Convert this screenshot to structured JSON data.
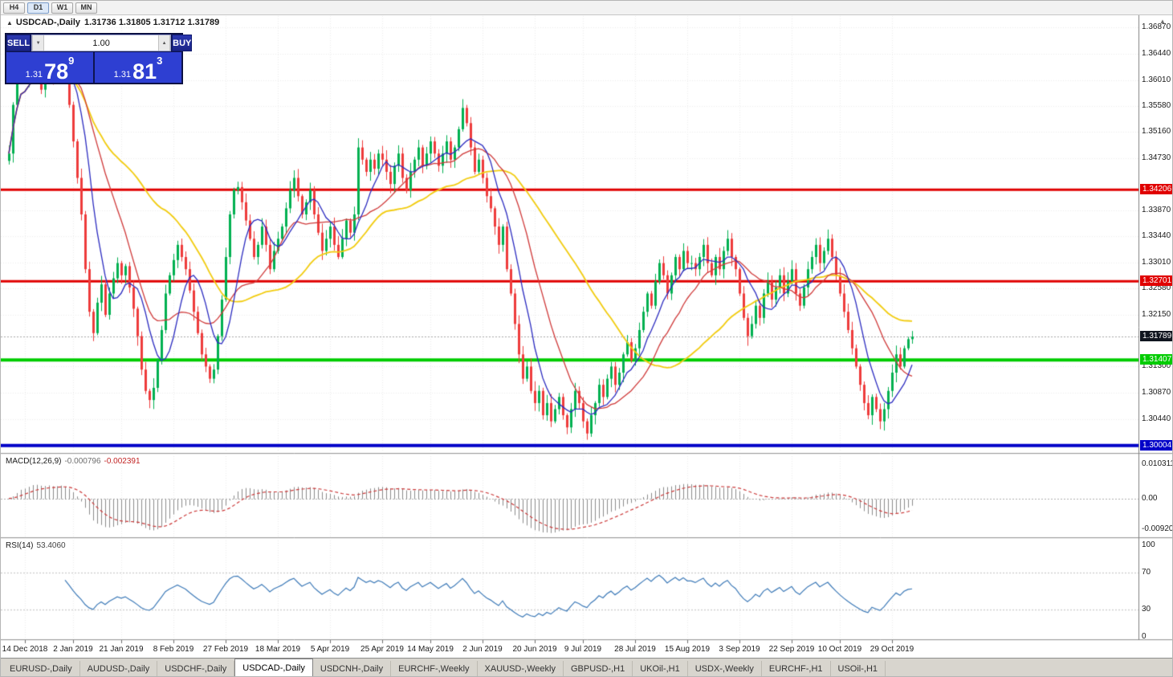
{
  "toolbar": {
    "timeframes": [
      {
        "label": "H4",
        "active": false
      },
      {
        "label": "D1",
        "active": true
      },
      {
        "label": "W1",
        "active": false
      },
      {
        "label": "MN",
        "active": false
      }
    ]
  },
  "chart": {
    "title": "USDCAD-,Daily",
    "ohlc_line": "1.31736 1.31805 1.31712 1.31789"
  },
  "trade_widget": {
    "sell_label": "SELL",
    "buy_label": "BUY",
    "volume": "1.00",
    "sell_price": {
      "small": "1.31",
      "big": "78",
      "sup": "9"
    },
    "buy_price": {
      "small": "1.31",
      "big": "81",
      "sup": "3"
    }
  },
  "macd_label": {
    "name": "MACD(12,26,9)",
    "value_main": "-0.000796",
    "value_signal": "-0.002391"
  },
  "rsi_label": {
    "name": "RSI(14)",
    "value": "53.4060"
  },
  "tabs": [
    {
      "label": "EURUSD-,Daily",
      "active": false
    },
    {
      "label": "AUDUSD-,Daily",
      "active": false
    },
    {
      "label": "USDCHF-,Daily",
      "active": false
    },
    {
      "label": "USDCAD-,Daily",
      "active": true
    },
    {
      "label": "USDCNH-,Daily",
      "active": false
    },
    {
      "label": "EURCHF-,Weekly",
      "active": false
    },
    {
      "label": "XAUUSD-,Weekly",
      "active": false
    },
    {
      "label": "GBPUSD-,H1",
      "active": false
    },
    {
      "label": "UKOil-,H1",
      "active": false
    },
    {
      "label": "USDX-,Weekly",
      "active": false
    },
    {
      "label": "EURCHF-,H1",
      "active": false
    },
    {
      "label": "USOil-,H1",
      "active": false
    }
  ],
  "chart_data": {
    "type": "candlestick",
    "symbol": "USDCAD",
    "period": "Daily",
    "y_min": 1.2992,
    "y_max": 1.3702,
    "price_ticks": [
      "1.36870",
      "1.36440",
      "1.36010",
      "1.35580",
      "1.35160",
      "1.34730",
      "1.33870",
      "1.33440",
      "1.33010",
      "1.32580",
      "1.32150",
      "1.31300",
      "1.30870",
      "1.30440"
    ],
    "h_lines": [
      {
        "price": 1.34206,
        "label": "1.34206",
        "color": "#e00000",
        "thickness": 3
      },
      {
        "price": 1.32701,
        "label": "1.32701",
        "color": "#e00000",
        "thickness": 3
      },
      {
        "price": 1.31407,
        "label": "1.31407",
        "color": "#00cc00",
        "thickness": 4
      },
      {
        "price": 1.30004,
        "label": "1.30004",
        "color": "#0000c8",
        "thickness": 4
      }
    ],
    "current_price": {
      "value": 1.31789,
      "label": "1.31789"
    },
    "closes": [
      1.348,
      1.356,
      1.362,
      1.365,
      1.36,
      1.364,
      1.3655,
      1.362,
      1.3585,
      1.3605,
      1.364,
      1.36,
      1.363,
      1.3655,
      1.361,
      1.356,
      1.35,
      1.344,
      1.338,
      1.329,
      1.322,
      1.3185,
      1.3235,
      1.3265,
      1.3215,
      1.325,
      1.3275,
      1.33,
      1.328,
      1.3295,
      1.326,
      1.3225,
      1.318,
      1.3125,
      1.309,
      1.3075,
      1.3095,
      1.314,
      1.319,
      1.325,
      1.328,
      1.3305,
      1.333,
      1.331,
      1.329,
      1.3255,
      1.322,
      1.3185,
      1.315,
      1.313,
      1.311,
      1.3125,
      1.318,
      1.324,
      1.331,
      1.338,
      1.342,
      1.3425,
      1.34,
      1.337,
      1.334,
      1.331,
      1.333,
      1.336,
      1.333,
      1.329,
      1.332,
      1.334,
      1.336,
      1.339,
      1.342,
      1.344,
      1.341,
      1.338,
      1.34,
      1.342,
      1.338,
      1.335,
      1.332,
      1.334,
      1.336,
      1.333,
      1.331,
      1.334,
      1.337,
      1.335,
      1.338,
      1.349,
      1.347,
      1.345,
      1.347,
      1.3455,
      1.348,
      1.347,
      1.345,
      1.343,
      1.346,
      1.348,
      1.344,
      1.342,
      1.345,
      1.347,
      1.349,
      1.346,
      1.348,
      1.35,
      1.348,
      1.346,
      1.348,
      1.35,
      1.347,
      1.349,
      1.352,
      1.3555,
      1.353,
      1.349,
      1.345,
      1.347,
      1.344,
      1.341,
      1.339,
      1.336,
      1.333,
      1.336,
      1.329,
      1.325,
      1.32,
      1.315,
      1.311,
      1.313,
      1.309,
      1.307,
      1.309,
      1.305,
      1.307,
      1.304,
      1.306,
      1.308,
      1.305,
      1.303,
      1.306,
      1.309,
      1.307,
      1.304,
      1.302,
      1.305,
      1.307,
      1.31,
      1.308,
      1.311,
      1.313,
      1.31,
      1.312,
      1.315,
      1.317,
      1.314,
      1.316,
      1.319,
      1.322,
      1.325,
      1.323,
      1.327,
      1.33,
      1.328,
      1.325,
      1.328,
      1.331,
      1.329,
      1.332,
      1.33,
      1.33,
      1.329,
      1.331,
      1.333,
      1.33,
      1.328,
      1.331,
      1.329,
      1.332,
      1.334,
      1.331,
      1.329,
      1.325,
      1.321,
      1.318,
      1.32,
      1.323,
      1.321,
      1.325,
      1.327,
      1.324,
      1.326,
      1.328,
      1.325,
      1.327,
      1.329,
      1.325,
      1.323,
      1.326,
      1.329,
      1.331,
      1.333,
      1.33,
      1.332,
      1.334,
      1.331,
      1.328,
      1.325,
      1.322,
      1.319,
      1.316,
      1.313,
      1.31,
      1.307,
      1.305,
      1.308,
      1.306,
      1.304,
      1.306,
      1.309,
      1.312,
      1.315,
      1.313,
      1.316,
      1.3175,
      1.3179
    ],
    "date_ticks": [
      {
        "label": "14 Dec 2018",
        "i": 4
      },
      {
        "label": "2 Jan 2019",
        "i": 16
      },
      {
        "label": "21 Jan 2019",
        "i": 28
      },
      {
        "label": "8 Feb 2019",
        "i": 41
      },
      {
        "label": "27 Feb 2019",
        "i": 54
      },
      {
        "label": "18 Mar 2019",
        "i": 67
      },
      {
        "label": "5 Apr 2019",
        "i": 80
      },
      {
        "label": "25 Apr 2019",
        "i": 93
      },
      {
        "label": "14 May 2019",
        "i": 105
      },
      {
        "label": "2 Jun 2019",
        "i": 118
      },
      {
        "label": "20 Jun 2019",
        "i": 131
      },
      {
        "label": "9 Jul 2019",
        "i": 143
      },
      {
        "label": "28 Jul 2019",
        "i": 156
      },
      {
        "label": "15 Aug 2019",
        "i": 169
      },
      {
        "label": "3 Sep 2019",
        "i": 182
      },
      {
        "label": "22 Sep 2019",
        "i": 195
      },
      {
        "label": "10 Oct 2019",
        "i": 207
      },
      {
        "label": "29 Oct 2019",
        "i": 220
      }
    ],
    "macd": {
      "fast": 12,
      "slow": 26,
      "signal": 9,
      "range": [
        -0.0104,
        0.0112
      ],
      "axis": [
        "0.010311",
        "0.00",
        "-0.009203"
      ]
    },
    "rsi": {
      "period": 14,
      "levels": [
        70,
        30
      ],
      "axis": [
        "100",
        "70",
        "30",
        "0"
      ]
    },
    "colors": {
      "bull": "#00b050",
      "bear": "#ee3b3b",
      "ma_fast": "#2b2bc0",
      "ma_mid": "#d03a3a",
      "ma_slow": "#f2cc0f",
      "macd_hist": "#8b8b8b",
      "macd_signal": "#cc3a3a",
      "rsi": "#3d7ab8",
      "grid": "#ededed",
      "price_badge_bg": "#10151f"
    }
  }
}
